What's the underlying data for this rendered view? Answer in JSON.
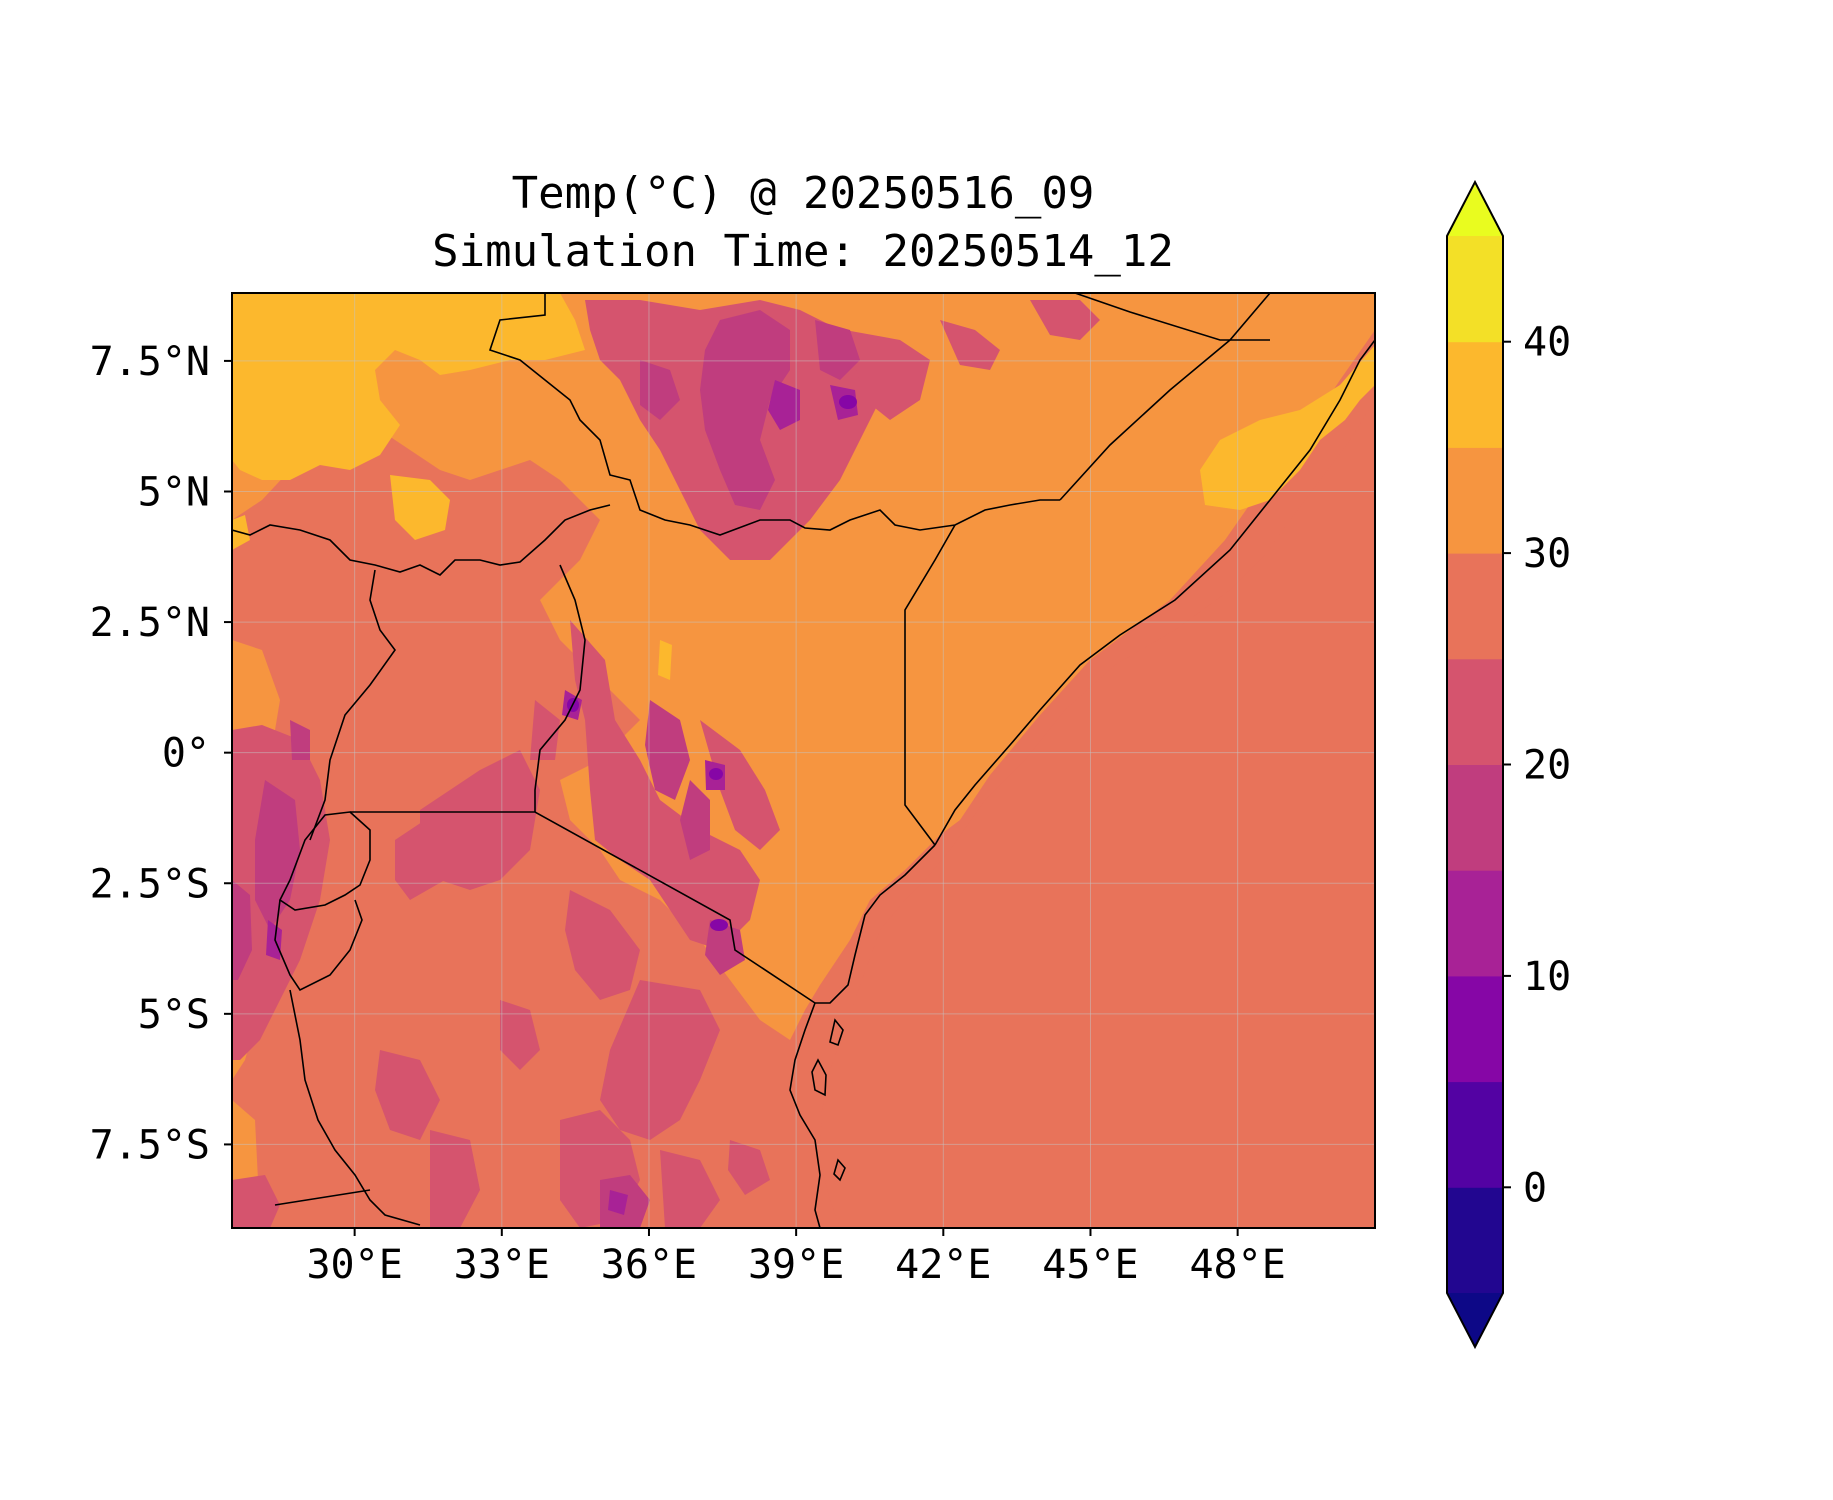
{
  "title": {
    "line1": "Temp(°C) @ 20250516_09",
    "line2": "Simulation Time: 20250514_12"
  },
  "map": {
    "lon_range": [
      27.5,
      50.8
    ],
    "lat_range": [
      -9.1,
      8.8
    ],
    "x_ticks": [
      {
        "lon": 30,
        "label": "30°E"
      },
      {
        "lon": 33,
        "label": "33°E"
      },
      {
        "lon": 36,
        "label": "36°E"
      },
      {
        "lon": 39,
        "label": "39°E"
      },
      {
        "lon": 42,
        "label": "42°E"
      },
      {
        "lon": 45,
        "label": "45°E"
      },
      {
        "lon": 48,
        "label": "48°E"
      }
    ],
    "y_ticks": [
      {
        "lat": 7.5,
        "label": "7.5°N"
      },
      {
        "lat": 5,
        "label": "5°N"
      },
      {
        "lat": 2.5,
        "label": "2.5°N"
      },
      {
        "lat": 0,
        "label": "0°"
      },
      {
        "lat": -2.5,
        "label": "2.5°S"
      },
      {
        "lat": -5,
        "label": "5°S"
      },
      {
        "lat": -7.5,
        "label": "7.5°S"
      }
    ],
    "gridlines": true,
    "field_base_color": "#e8735a"
  },
  "colorbar": {
    "range": [
      -5,
      45
    ],
    "extend": "both",
    "levels": [
      {
        "from": -5,
        "to": 0,
        "color": "#220690"
      },
      {
        "from": 0,
        "to": 5,
        "color": "#5302a3"
      },
      {
        "from": 5,
        "to": 10,
        "color": "#8606a6"
      },
      {
        "from": 10,
        "to": 15,
        "color": "#a82296"
      },
      {
        "from": 15,
        "to": 20,
        "color": "#c03d7e"
      },
      {
        "from": 20,
        "to": 25,
        "color": "#d5546e"
      },
      {
        "from": 25,
        "to": 30,
        "color": "#e8735a"
      },
      {
        "from": 30,
        "to": 35,
        "color": "#f69540"
      },
      {
        "from": 35,
        "to": 40,
        "color": "#fcb82d"
      },
      {
        "from": 40,
        "to": 45,
        "color": "#f3e027"
      }
    ],
    "under_color": "#0d0887",
    "over_color": "#e9fc1f",
    "ticks": [
      {
        "value": 0,
        "label": "0"
      },
      {
        "value": 10,
        "label": "10"
      },
      {
        "value": 20,
        "label": "20"
      },
      {
        "value": 30,
        "label": "30"
      },
      {
        "value": 40,
        "label": "40"
      }
    ]
  }
}
